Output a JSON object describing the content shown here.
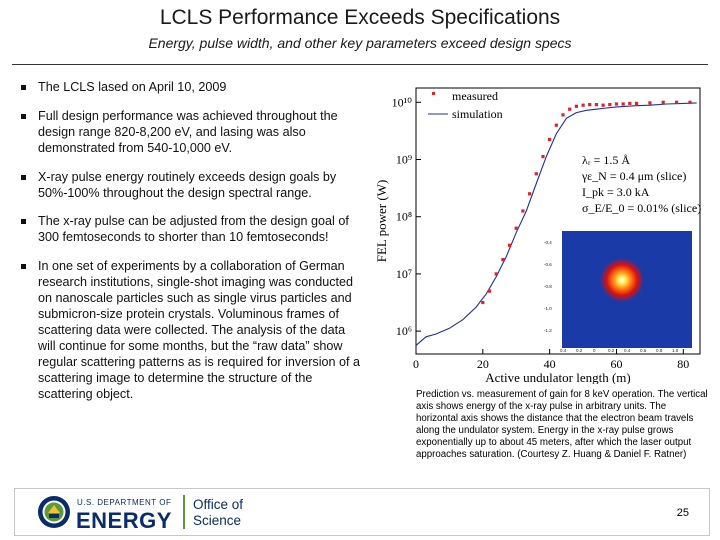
{
  "slide": {
    "title": "LCLS Performance Exceeds Specifications",
    "subtitle": "Energy, pulse width, and other key parameters exceed design specs"
  },
  "bullets": [
    "The LCLS lased on April 10, 2009",
    "Full design performance was achieved throughout the design range 820-8,200 eV, and lasing was also demonstrated from 540-10,000 eV.",
    "X-ray pulse energy routinely exceeds design goals by 50%-100% throughout the design spectral range.",
    "The x-ray pulse can be adjusted from the design goal of 300 femtoseconds to shorter than 10 femtoseconds!",
    "In one set of experiments by a collaboration of German research institutions, single-shot imaging was conducted on nanoscale particles such as single virus particles and submicron-size protein crystals. Voluminous frames of scattering data were collected. The analysis of the data will continue for some months, but the “raw data” show regular scattering patterns as is required for inversion of a scattering image to determine the structure of the scattering object."
  ],
  "chart_data": {
    "type": "scatter",
    "xlabel": "Active undulator length (m)",
    "ylabel": "FEL power (W)",
    "xlim": [
      0,
      85
    ],
    "ylim": [
      5.6,
      10.25
    ],
    "yscale": "log",
    "x_ticks": [
      "0",
      "20",
      "40",
      "60",
      "80"
    ],
    "x_tick_values": [
      0,
      20,
      40,
      60,
      80
    ],
    "y_ticks": [
      "10⁶",
      "10⁷",
      "10⁸",
      "10⁹",
      "10¹⁰"
    ],
    "y_tick_values": [
      6,
      7,
      8,
      9,
      10
    ],
    "legend": [
      "measured",
      "simulation"
    ],
    "series": [
      {
        "name": "measured",
        "color": "#e0202a",
        "x": [
          20,
          22,
          24,
          26,
          28,
          30,
          32,
          34,
          36,
          38,
          40,
          42,
          44,
          46,
          48,
          50,
          52,
          54,
          56,
          58,
          60,
          62,
          64,
          66,
          70,
          74,
          78,
          82
        ],
        "log10_y": [
          6.5,
          6.7,
          7.0,
          7.25,
          7.5,
          7.8,
          8.1,
          8.4,
          8.75,
          9.05,
          9.35,
          9.6,
          9.78,
          9.88,
          9.93,
          9.95,
          9.96,
          9.96,
          9.95,
          9.96,
          9.97,
          9.97,
          9.98,
          9.98,
          9.99,
          10.0,
          10.0,
          10.0
        ]
      },
      {
        "name": "simulation",
        "color": "#1f2fa0",
        "x": [
          0,
          3,
          6,
          10,
          14,
          18,
          21,
          24,
          27,
          30,
          33,
          36,
          39,
          42,
          45,
          48,
          51,
          54,
          57,
          60,
          63,
          66,
          70,
          75,
          80,
          84
        ],
        "log10_y": [
          5.75,
          5.9,
          5.95,
          6.05,
          6.2,
          6.42,
          6.65,
          6.95,
          7.3,
          7.72,
          8.1,
          8.58,
          9.05,
          9.45,
          9.72,
          9.82,
          9.86,
          9.88,
          9.9,
          9.92,
          9.93,
          9.94,
          9.95,
          9.97,
          9.98,
          9.99
        ]
      }
    ],
    "annotation_lines": [
      "λᵣ = 1.5 Å",
      "γε_N = 0.4 μm (slice)",
      "I_pk = 3.0 kA",
      "σ_E/E_0 = 0.01% (slice)"
    ],
    "inset": {
      "description_labels": [
        "-0.4",
        "-0.6",
        "-0.8",
        "-1.0",
        "-1.2"
      ],
      "x_labels": [
        "0.4",
        "0.2",
        "0",
        "0.2",
        "0.4",
        "0.6",
        "0.8",
        "1.0"
      ]
    }
  },
  "caption": "Prediction vs. measurement of gain for 8 keV operation. The vertical axis shows energy of the x-ray pulse in arbitrary units. The horizontal axis shows the distance that the electron beam travels along the undulator system. Energy in the x-ray pulse grows exponentially up to about 45 meters, after which the laser output approaches saturation. (Courtesy Z. Huang & Daniel F. Ratner)",
  "footer": {
    "doe_top": "U.S. DEPARTMENT OF",
    "doe_energy": "ENERGY",
    "office": "Office of",
    "science": "Science",
    "page_number": "25"
  },
  "colors": {
    "doe_blue": "#0a2c6a",
    "doe_green": "#5a9a3a",
    "measured": "#e0202a",
    "simulation": "#1f2fa0"
  }
}
